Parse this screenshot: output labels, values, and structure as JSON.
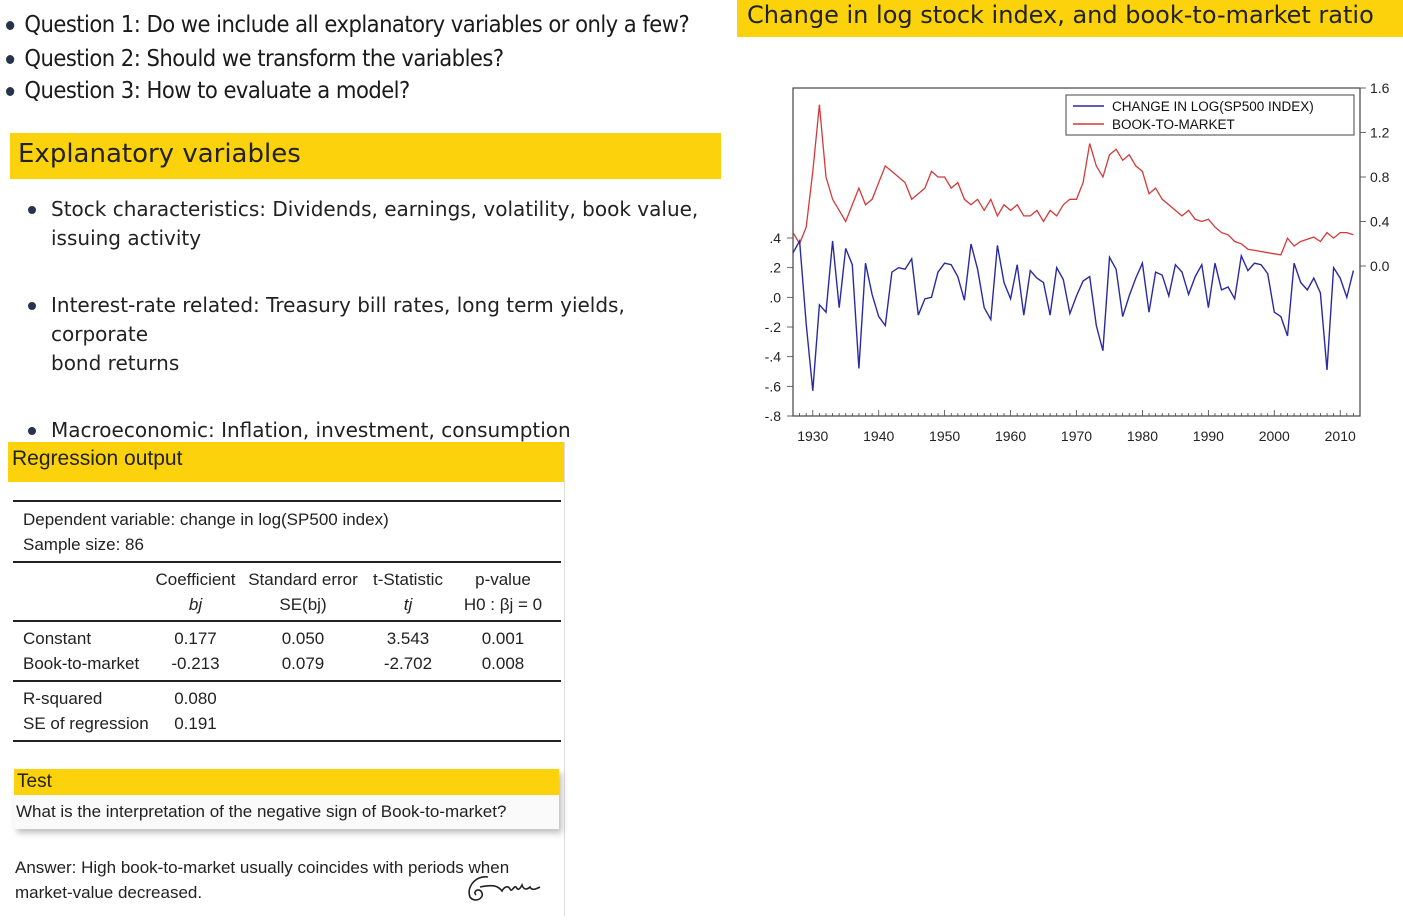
{
  "questions": [
    "Question 1: Do we include all explanatory variables or only a few?",
    "Question 2: Should we transform the variables?",
    "Question 3: How to evaluate a model?"
  ],
  "explanatory": {
    "title": "Explanatory variables",
    "items": [
      {
        "l1": "Stock characteristics: Dividends, earnings, volatility, book value,",
        "l2": "issuing activity"
      },
      {
        "l1": "Interest-rate related: Treasury bill rates, long term yields, corporate",
        "l2": "bond returns"
      },
      {
        "l1": "Macroeconomic: Inflation, investment, consumption",
        "l2": ""
      }
    ]
  },
  "regression": {
    "title": "Regression output",
    "dep_var": "Dependent variable: change in log(SP500 index)",
    "sample": "Sample size: 86",
    "headers": [
      {
        "top": "Coefficient",
        "sub": "bj"
      },
      {
        "top": "Standard error",
        "sub": "SE(bj)"
      },
      {
        "top": "t-Statistic",
        "sub": "tj"
      },
      {
        "top": "p-value",
        "sub": "H0 : βj = 0"
      }
    ],
    "rows": [
      {
        "name": "Constant",
        "cells": [
          "0.177",
          "0.050",
          "3.543",
          "0.001"
        ]
      },
      {
        "name": "Book-to-market",
        "cells": [
          "-0.213",
          "0.079",
          "-2.702",
          "0.008"
        ]
      }
    ],
    "stats": [
      {
        "name": "R-squared",
        "value": "0.080"
      },
      {
        "name": "SE of regression",
        "value": "0.191"
      }
    ]
  },
  "test": {
    "title": "Test",
    "question": "What is the interpretation of the negative sign of Book-to-market?",
    "answer1": "Answer: High book-to-market usually coincides with periods when",
    "answer2": "market-value decreased."
  },
  "chart_title": "Change in log stock index, and book-to-market ratio",
  "colors": {
    "accent": "#fcd20d",
    "blue": "#2a2aa0",
    "red": "#d23a3a"
  },
  "chart_data": {
    "type": "line",
    "x": [
      1927,
      1928,
      1929,
      1930,
      1931,
      1932,
      1933,
      1934,
      1935,
      1936,
      1937,
      1938,
      1939,
      1940,
      1941,
      1942,
      1943,
      1944,
      1945,
      1946,
      1947,
      1948,
      1949,
      1950,
      1951,
      1952,
      1953,
      1954,
      1955,
      1956,
      1957,
      1958,
      1959,
      1960,
      1961,
      1962,
      1963,
      1964,
      1965,
      1966,
      1967,
      1968,
      1969,
      1970,
      1971,
      1972,
      1973,
      1974,
      1975,
      1976,
      1977,
      1978,
      1979,
      1980,
      1981,
      1982,
      1983,
      1984,
      1985,
      1986,
      1987,
      1988,
      1989,
      1990,
      1991,
      1992,
      1993,
      1994,
      1995,
      1996,
      1997,
      1998,
      1999,
      2000,
      2001,
      2002,
      2003,
      2004,
      2005,
      2006,
      2007,
      2008,
      2009,
      2010,
      2011,
      2012
    ],
    "series": [
      {
        "name": "CHANGE IN LOG(SP500 INDEX)",
        "axis": "left",
        "values": [
          0.3,
          0.38,
          -0.18,
          -0.63,
          -0.05,
          -0.1,
          0.38,
          -0.07,
          0.33,
          0.22,
          -0.48,
          0.23,
          0.02,
          -0.13,
          -0.19,
          0.17,
          0.2,
          0.19,
          0.26,
          -0.12,
          -0.01,
          0.0,
          0.17,
          0.23,
          0.22,
          0.14,
          -0.02,
          0.36,
          0.19,
          -0.07,
          -0.15,
          0.35,
          0.1,
          -0.01,
          0.22,
          -0.12,
          0.18,
          0.13,
          0.1,
          -0.12,
          0.2,
          0.12,
          -0.11,
          0.01,
          0.11,
          0.14,
          -0.19,
          -0.36,
          0.27,
          0.19,
          -0.13,
          0.01,
          0.13,
          0.23,
          -0.1,
          0.17,
          0.15,
          0.01,
          0.22,
          0.17,
          0.02,
          0.14,
          0.22,
          -0.07,
          0.23,
          0.05,
          0.07,
          -0.01,
          0.28,
          0.18,
          0.23,
          0.22,
          0.16,
          -0.1,
          -0.13,
          -0.26,
          0.23,
          0.1,
          0.05,
          0.13,
          0.03,
          -0.49,
          0.2,
          0.13,
          0.0,
          0.18
        ]
      },
      {
        "name": "BOOK-TO-MARKET",
        "axis": "right",
        "values": [
          0.3,
          0.2,
          0.35,
          0.85,
          1.45,
          0.8,
          0.6,
          0.5,
          0.4,
          0.55,
          0.7,
          0.55,
          0.6,
          0.75,
          0.9,
          0.85,
          0.8,
          0.75,
          0.6,
          0.65,
          0.7,
          0.85,
          0.8,
          0.8,
          0.7,
          0.75,
          0.6,
          0.55,
          0.6,
          0.5,
          0.6,
          0.45,
          0.55,
          0.5,
          0.55,
          0.45,
          0.45,
          0.5,
          0.4,
          0.5,
          0.45,
          0.55,
          0.6,
          0.6,
          0.75,
          1.1,
          0.9,
          0.8,
          1.0,
          1.05,
          0.95,
          1.0,
          0.9,
          0.85,
          0.65,
          0.7,
          0.6,
          0.55,
          0.5,
          0.45,
          0.5,
          0.42,
          0.4,
          0.42,
          0.35,
          0.3,
          0.28,
          0.22,
          0.2,
          0.15,
          0.14,
          0.13,
          0.12,
          0.11,
          0.1,
          0.25,
          0.18,
          0.22,
          0.24,
          0.26,
          0.22,
          0.3,
          0.25,
          0.3,
          0.3,
          0.28
        ]
      }
    ],
    "left_ticks": [
      ".4",
      ".2",
      ".0",
      "-.2",
      "-.4",
      "-.6",
      "-.8"
    ],
    "left_tick_values": [
      0.4,
      0.2,
      0.0,
      -0.2,
      -0.4,
      -0.6,
      -0.8
    ],
    "right_ticks": [
      "1.6",
      "1.2",
      "0.8",
      "0.4",
      "0.0"
    ],
    "right_tick_values": [
      1.6,
      1.2,
      0.8,
      0.4,
      0.0
    ],
    "x_ticks": [
      "1930",
      "1940",
      "1950",
      "1960",
      "1970",
      "1980",
      "1990",
      "2000",
      "2010"
    ],
    "x_tick_values": [
      1930,
      1940,
      1950,
      1960,
      1970,
      1980,
      1990,
      2000,
      2010
    ],
    "xlim": [
      1927,
      2013
    ],
    "left_ylim": [
      -0.8,
      0.4
    ],
    "right_ylim": [
      0.0,
      1.6
    ],
    "legend": "top-right"
  }
}
